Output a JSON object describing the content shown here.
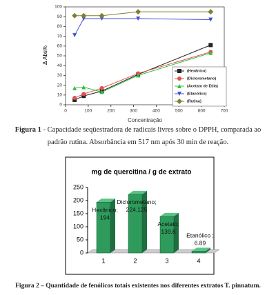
{
  "chart_data": [
    {
      "type": "line",
      "y_label": "Δ Abs%",
      "x_label": "Concentração",
      "xlim": [
        0,
        700
      ],
      "xticks": [
        0,
        100,
        200,
        300,
        400,
        500,
        600,
        700
      ],
      "ylim": [
        0,
        100
      ],
      "yticks": [
        0,
        10,
        20,
        30,
        40,
        50,
        60,
        70,
        80,
        90,
        100
      ],
      "grid": false,
      "legend": "lower-right",
      "x": [
        40,
        80,
        160,
        320,
        640
      ],
      "series": [
        {
          "name": "(Hexânico)",
          "color": "#222222",
          "marker": "square",
          "values": [
            5,
            9,
            14,
            31,
            61
          ]
        },
        {
          "name": "(Diclorometano)",
          "color": "#e05050",
          "marker": "circle",
          "values": [
            7,
            11,
            17,
            32,
            54
          ]
        },
        {
          "name": "(Acetato de Etila)",
          "color": "#30c040",
          "marker": "triangle",
          "values": [
            17,
            18,
            13,
            30,
            53
          ]
        },
        {
          "name": "(Etanólico)",
          "color": "#4050d0",
          "marker": "triangle-down",
          "values": [
            71,
            88,
            88,
            88,
            87
          ]
        },
        {
          "name": "(Rutina)",
          "color": "#808030",
          "marker": "diamond",
          "values": [
            91,
            91,
            91,
            95,
            95
          ]
        }
      ]
    },
    {
      "type": "bar3d",
      "title": "mg de quercitina / g de extrato",
      "categories": [
        "1",
        "2",
        "3",
        "4"
      ],
      "bar_labels": [
        "Hexânico;",
        "Diclorometano;",
        "Acetato;",
        "Etanólico ;"
      ],
      "values": [
        194,
        224.125,
        139.8,
        6.89
      ],
      "color": "#2e9b5c",
      "ylim": [
        0,
        250
      ],
      "yticks": [
        0,
        50,
        100,
        150,
        200,
        250
      ]
    }
  ],
  "captions": [
    {
      "label": "Figura 1",
      "text": " - Capacidade seqüestradora de radicais livres sobre o DPPH, comparada ao",
      "text2": "padrão rutina. Absorbância em 517 nm após 30 min de reação."
    },
    {
      "label": "Figura 2",
      "text": " – Quantidade de fenólicos totais existentes nos diferentes extratos T. pinnatum."
    }
  ]
}
